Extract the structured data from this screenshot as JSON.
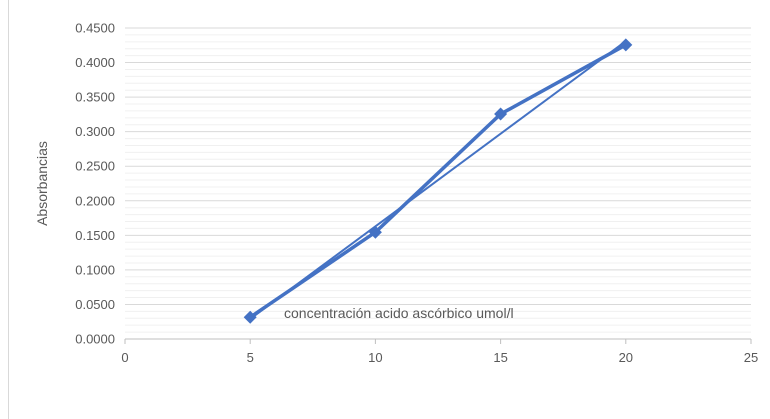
{
  "chart_data": {
    "type": "scatter",
    "title": "",
    "xlabel": "",
    "ylabel": "Absorbancias",
    "xlim": [
      0,
      25
    ],
    "ylim": [
      0,
      0.45
    ],
    "x_ticks": [
      "0",
      "5",
      "10",
      "15",
      "20",
      "25"
    ],
    "y_ticks": [
      "0.0000",
      "0.0500",
      "0.1000",
      "0.1500",
      "0.2000",
      "0.2500",
      "0.3000",
      "0.3500",
      "0.4000",
      "0.4500"
    ],
    "grid": true,
    "annotation": "concentración acido ascórbico umol/l",
    "series": [
      {
        "x": [
          5,
          10,
          15,
          20
        ],
        "y": [
          0.0315,
          0.1545,
          0.3255,
          0.4255
        ],
        "color": "#4472c4",
        "marker": "diamond",
        "line": "straight"
      }
    ],
    "trendline": {
      "type": "linear",
      "color": "#4472c4",
      "x": [
        5,
        20
      ],
      "y": [
        0.029,
        0.431
      ]
    }
  }
}
